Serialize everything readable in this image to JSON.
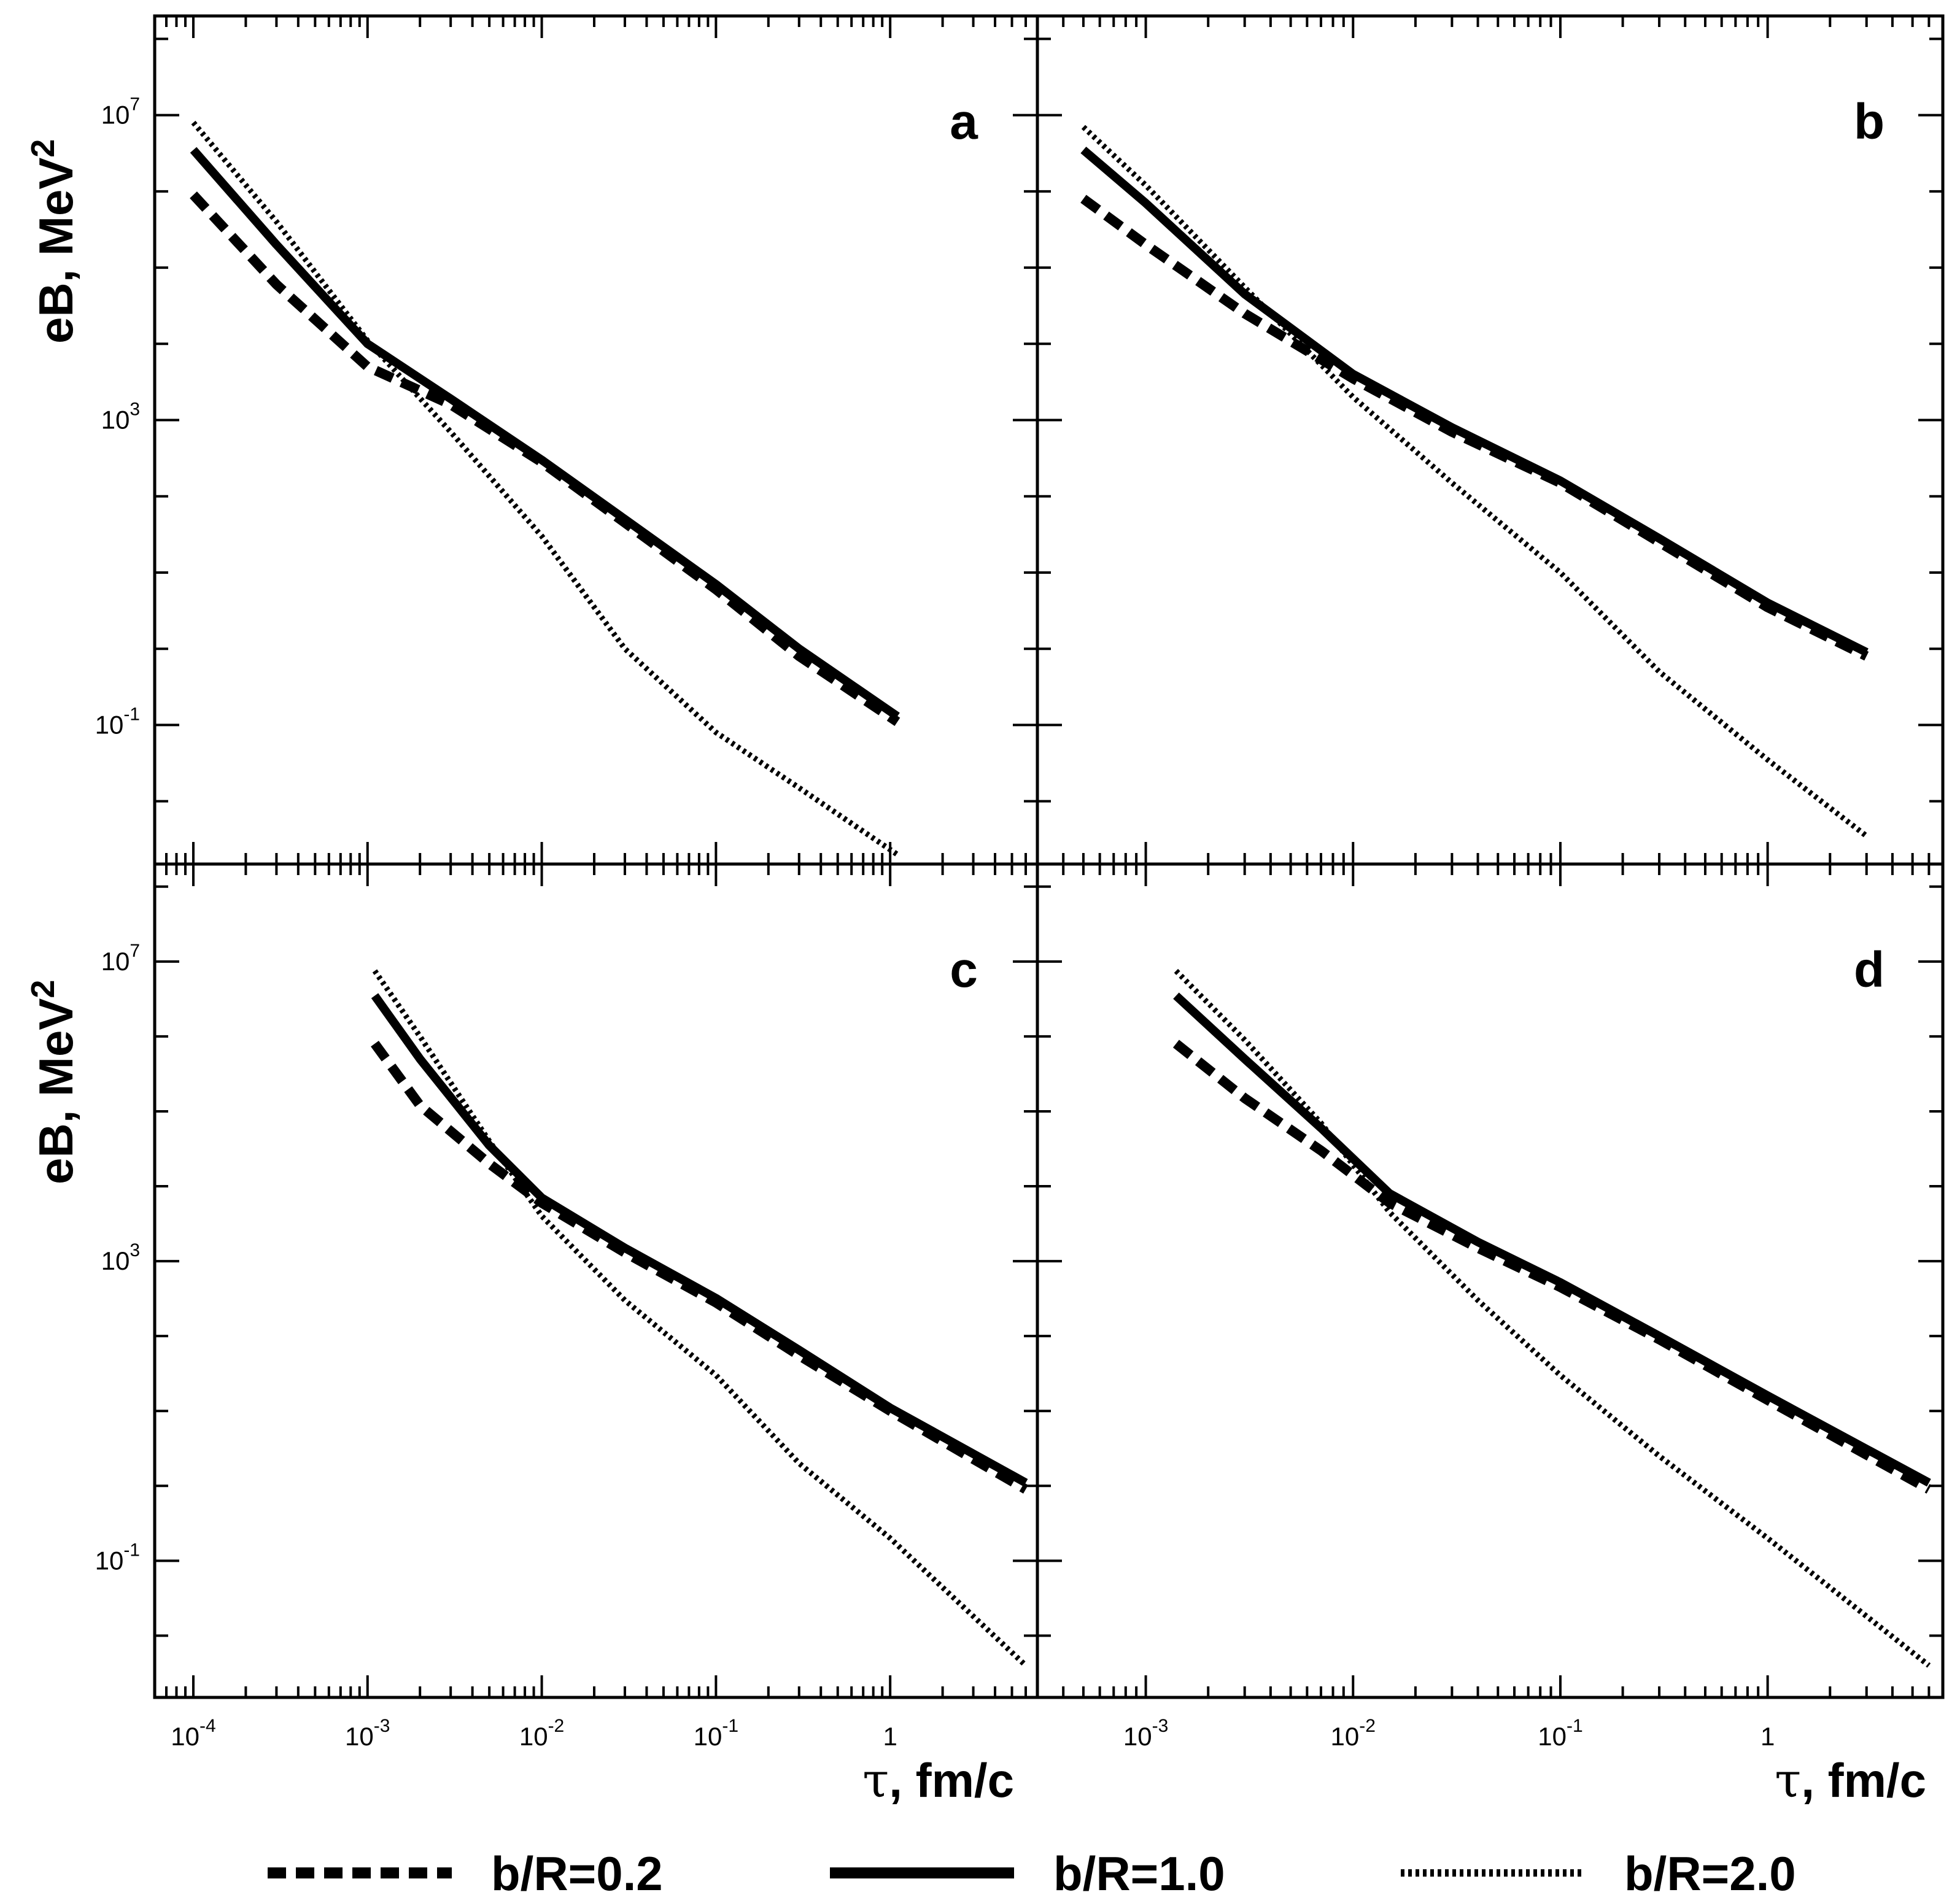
{
  "figure": {
    "ylabel_text": "eB, MeV",
    "ylabel_sup": "2",
    "xlabel_symbol": "τ",
    "xlabel_text": ", fm/c"
  },
  "styles": {
    "line_color": "#000000",
    "background": "#ffffff"
  },
  "legend": [
    {
      "label": "b/R=0.2",
      "style": "dashed"
    },
    {
      "label": "b/R=1.0",
      "style": "solid"
    },
    {
      "label": "b/R=2.0",
      "style": "dotted"
    }
  ],
  "chart_data": [
    {
      "panel": "a",
      "type": "line",
      "xscale": "log",
      "yscale": "log",
      "xlim": [
        6e-05,
        7.0
      ],
      "ylim": [
        0.0015,
        200000000
      ],
      "xticks": [
        {
          "base": "10",
          "exp": "-4",
          "value": 0.0001
        },
        {
          "base": "10",
          "exp": "-3",
          "value": 0.001
        },
        {
          "base": "10",
          "exp": "-2",
          "value": 0.01
        },
        {
          "base": "10",
          "exp": "-1",
          "value": 0.1
        },
        {
          "base": "1",
          "exp": "",
          "value": 1
        }
      ],
      "yticks": [
        {
          "base": "10",
          "exp": "7",
          "value": 10000000
        },
        {
          "base": "10",
          "exp": "3",
          "value": 1000
        },
        {
          "base": "10",
          "exp": "-1",
          "value": 0.1
        }
      ],
      "series": [
        {
          "name": "b/R=0.2",
          "style": "dashed",
          "x": [
            0.0001,
            0.0003,
            0.001,
            0.003,
            0.01,
            0.03,
            0.1,
            0.3,
            1.1
          ],
          "y": [
            900000,
            60000,
            5000,
            1600,
            280,
            45,
            6,
            0.8,
            0.11
          ]
        },
        {
          "name": "b/R=1.0",
          "style": "solid",
          "x": [
            0.0001,
            0.0003,
            0.001,
            0.003,
            0.01,
            0.03,
            0.1,
            0.3,
            1.1
          ],
          "y": [
            3500000,
            200000,
            10000,
            1900,
            300,
            50,
            7,
            1,
            0.13
          ]
        },
        {
          "name": "b/R=2.0",
          "style": "dotted",
          "x": [
            0.0001,
            0.0003,
            0.001,
            0.003,
            0.01,
            0.03,
            0.1,
            0.3,
            1.1
          ],
          "y": [
            8000000,
            400000,
            11000,
            700,
            30,
            1,
            0.08,
            0.015,
            0.002
          ]
        }
      ]
    },
    {
      "panel": "b",
      "type": "line",
      "xscale": "log",
      "yscale": "log",
      "xlim": [
        0.0003,
        7.0
      ],
      "ylim": [
        0.0015,
        200000000
      ],
      "xticks": [
        {
          "base": "10",
          "exp": "-3",
          "value": 0.001
        },
        {
          "base": "10",
          "exp": "-2",
          "value": 0.01
        },
        {
          "base": "10",
          "exp": "-1",
          "value": 0.1
        },
        {
          "base": "1",
          "exp": "",
          "value": 1
        }
      ],
      "yticks": [],
      "series": [
        {
          "name": "b/R=0.2",
          "style": "dashed",
          "x": [
            0.0005,
            0.001,
            0.003,
            0.01,
            0.03,
            0.1,
            0.3,
            1,
            3
          ],
          "y": [
            800000,
            200000,
            25000,
            3500,
            700,
            150,
            25,
            3.5,
            0.8
          ]
        },
        {
          "name": "b/R=1.0",
          "style": "solid",
          "x": [
            0.0005,
            0.001,
            0.003,
            0.01,
            0.03,
            0.1,
            0.3,
            1,
            3
          ],
          "y": [
            3500000,
            700000,
            45000,
            4000,
            800,
            160,
            28,
            4,
            0.9
          ]
        },
        {
          "name": "b/R=2.0",
          "style": "dotted",
          "x": [
            0.0005,
            0.001,
            0.003,
            0.01,
            0.03,
            0.1,
            0.3,
            1,
            3
          ],
          "y": [
            7000000,
            1200000,
            55000,
            2000,
            150,
            10,
            0.5,
            0.035,
            0.0035
          ]
        }
      ]
    },
    {
      "panel": "c",
      "type": "line",
      "xscale": "log",
      "yscale": "log",
      "xlim": [
        6e-05,
        7.0
      ],
      "ylim": [
        0.0015,
        200000000
      ],
      "xticks": [
        {
          "base": "10",
          "exp": "-4",
          "value": 0.0001
        },
        {
          "base": "10",
          "exp": "-3",
          "value": 0.001
        },
        {
          "base": "10",
          "exp": "-2",
          "value": 0.01
        },
        {
          "base": "10",
          "exp": "-1",
          "value": 0.1
        },
        {
          "base": "1",
          "exp": "",
          "value": 1
        }
      ],
      "yticks": [
        {
          "base": "10",
          "exp": "7",
          "value": 10000000
        },
        {
          "base": "10",
          "exp": "3",
          "value": 1000
        },
        {
          "base": "10",
          "exp": "-1",
          "value": 0.1
        }
      ],
      "series": [
        {
          "name": "b/R=0.2",
          "style": "dashed",
          "x": [
            0.0011,
            0.002,
            0.005,
            0.01,
            0.03,
            0.1,
            0.3,
            1,
            6
          ],
          "y": [
            800000,
            120000,
            20000,
            6000,
            1300,
            280,
            55,
            10,
            0.9
          ]
        },
        {
          "name": "b/R=1.0",
          "style": "solid",
          "x": [
            0.0011,
            0.002,
            0.005,
            0.01,
            0.03,
            0.1,
            0.3,
            1,
            6
          ],
          "y": [
            3500000,
            500000,
            35000,
            7000,
            1500,
            320,
            65,
            11,
            1.1
          ]
        },
        {
          "name": "b/R=2.0",
          "style": "dotted",
          "x": [
            0.0011,
            0.002,
            0.005,
            0.01,
            0.03,
            0.1,
            0.3,
            1,
            6
          ],
          "y": [
            7500000,
            1000000,
            40000,
            4000,
            300,
            30,
            2,
            0.2,
            0.004
          ]
        }
      ]
    },
    {
      "panel": "d",
      "type": "line",
      "xscale": "log",
      "yscale": "log",
      "xlim": [
        0.0003,
        7.0
      ],
      "ylim": [
        0.0015,
        200000000
      ],
      "xticks": [
        {
          "base": "10",
          "exp": "-3",
          "value": 0.001
        },
        {
          "base": "10",
          "exp": "-2",
          "value": 0.01
        },
        {
          "base": "10",
          "exp": "-1",
          "value": 0.1
        },
        {
          "base": "1",
          "exp": "",
          "value": 1
        }
      ],
      "yticks": [],
      "series": [
        {
          "name": "b/R=0.2",
          "style": "dashed",
          "x": [
            0.0014,
            0.003,
            0.007,
            0.015,
            0.04,
            0.1,
            0.3,
            1,
            6
          ],
          "y": [
            800000,
            150000,
            30000,
            6000,
            1500,
            450,
            90,
            14,
            0.9
          ]
        },
        {
          "name": "b/R=1.0",
          "style": "solid",
          "x": [
            0.0014,
            0.003,
            0.007,
            0.015,
            0.04,
            0.1,
            0.3,
            1,
            6
          ],
          "y": [
            3500000,
            500000,
            60000,
            8000,
            1800,
            520,
            100,
            16,
            1.1
          ]
        },
        {
          "name": "b/R=2.0",
          "style": "dotted",
          "x": [
            0.0014,
            0.003,
            0.007,
            0.015,
            0.04,
            0.1,
            0.3,
            1,
            6
          ],
          "y": [
            7500000,
            900000,
            70000,
            4500,
            300,
            30,
            2.5,
            0.2,
            0.004
          ]
        }
      ]
    }
  ]
}
